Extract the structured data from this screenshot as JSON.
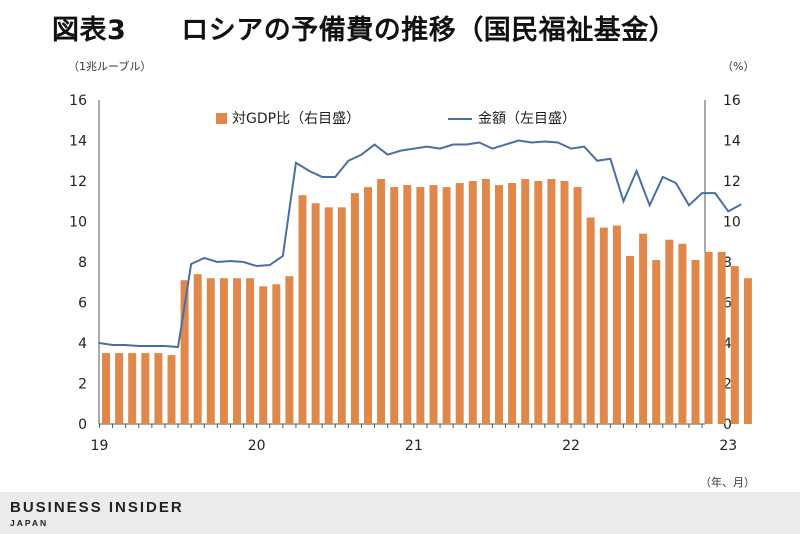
{
  "header": {
    "title": "図表3　　ロシアの予備費の推移（国民福祉基金）"
  },
  "footer": {
    "brand": "BUSINESS INSIDER",
    "brand_sub": "JAPAN"
  },
  "chart_data": {
    "type": "bar+line",
    "left_unit": "（1兆ルーブル）",
    "right_unit": "（%）",
    "x_unit": "（年、月）",
    "x_tick_labels": [
      "19",
      "20",
      "21",
      "22",
      "23"
    ],
    "y_left_lim": [
      0,
      16
    ],
    "y_right_lim": [
      0,
      16
    ],
    "y_ticks": [
      "0",
      "2",
      "4",
      "6",
      "8",
      "10",
      "12",
      "14",
      "16"
    ],
    "grid": false,
    "legend_position": "top",
    "colors": {
      "bar": "#E0884B",
      "line": "#4A6FA5"
    },
    "series": [
      {
        "name": "対GDP比（右目盛）",
        "kind": "bar",
        "axis": "right",
        "values": [
          3.5,
          3.5,
          3.5,
          3.5,
          3.5,
          3.4,
          7.1,
          7.4,
          7.2,
          7.2,
          7.2,
          7.2,
          6.8,
          6.9,
          7.3,
          11.3,
          10.9,
          10.7,
          10.7,
          11.4,
          11.7,
          12.1,
          11.7,
          11.8,
          11.7,
          11.8,
          11.7,
          11.9,
          12.0,
          12.1,
          11.8,
          11.9,
          12.1,
          12.0,
          12.1,
          12.0,
          11.7,
          10.2,
          9.7,
          9.8,
          8.3,
          9.4,
          8.1,
          9.1,
          8.9,
          8.1,
          8.5,
          8.5,
          7.8,
          7.2
        ]
      },
      {
        "name": "金額（左目盛）",
        "kind": "line",
        "axis": "left",
        "values": [
          4.0,
          3.9,
          3.9,
          3.85,
          3.85,
          3.85,
          3.8,
          7.9,
          8.2,
          8.0,
          8.05,
          8.0,
          7.8,
          7.85,
          8.3,
          12.9,
          12.5,
          12.2,
          12.2,
          13.0,
          13.3,
          13.8,
          13.3,
          13.5,
          13.6,
          13.7,
          13.6,
          13.8,
          13.8,
          13.9,
          13.6,
          13.8,
          14.0,
          13.9,
          13.95,
          13.9,
          13.6,
          13.7,
          13.0,
          13.1,
          11.0,
          12.5,
          10.8,
          12.2,
          11.9,
          10.8,
          11.4,
          11.4,
          10.5,
          10.85
        ]
      }
    ]
  }
}
